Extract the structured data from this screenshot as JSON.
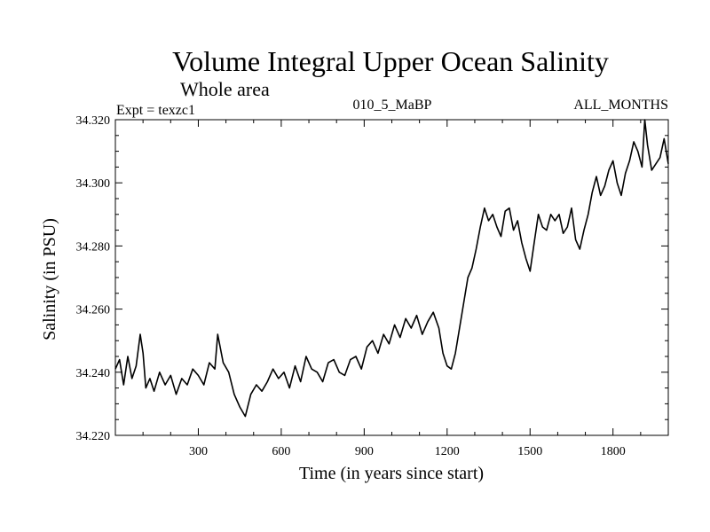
{
  "chart_data": {
    "type": "line",
    "title": "Volume Integral Upper Ocean Salinity",
    "subtitle": "Whole area",
    "experiment_label": "Expt = texzc1",
    "run_label": "010_5_MaBP",
    "months_label": "ALL_MONTHS",
    "xlabel": "Time (in years since start)",
    "ylabel": "Salinity (in PSU)",
    "xlim": [
      0,
      2000
    ],
    "ylim": [
      34.22,
      34.32
    ],
    "x_ticks": [
      300,
      600,
      900,
      1200,
      1500,
      1800
    ],
    "y_ticks": [
      "34.220",
      "34.240",
      "34.260",
      "34.280",
      "34.300",
      "34.320"
    ],
    "series": [
      {
        "name": "salinity",
        "x": [
          0,
          15,
          30,
          45,
          60,
          75,
          90,
          100,
          110,
          125,
          140,
          160,
          180,
          200,
          220,
          240,
          260,
          280,
          300,
          320,
          340,
          360,
          370,
          390,
          410,
          430,
          450,
          470,
          490,
          510,
          530,
          550,
          570,
          590,
          610,
          630,
          650,
          670,
          690,
          710,
          730,
          750,
          770,
          790,
          810,
          830,
          850,
          870,
          890,
          910,
          930,
          950,
          970,
          990,
          1010,
          1030,
          1050,
          1070,
          1090,
          1110,
          1130,
          1150,
          1170,
          1185,
          1200,
          1215,
          1230,
          1245,
          1260,
          1275,
          1290,
          1305,
          1320,
          1335,
          1350,
          1365,
          1380,
          1395,
          1410,
          1425,
          1440,
          1455,
          1470,
          1485,
          1500,
          1515,
          1530,
          1545,
          1560,
          1575,
          1590,
          1605,
          1620,
          1635,
          1650,
          1665,
          1680,
          1695,
          1710,
          1725,
          1740,
          1755,
          1770,
          1785,
          1800,
          1815,
          1830,
          1845,
          1860,
          1875,
          1890,
          1905,
          1915,
          1925,
          1940,
          1955,
          1970,
          1985,
          2000
        ],
        "values": [
          34.241,
          34.244,
          34.236,
          34.245,
          34.238,
          34.242,
          34.252,
          34.246,
          34.235,
          34.238,
          34.234,
          34.24,
          34.236,
          34.239,
          34.233,
          34.238,
          34.236,
          34.241,
          34.239,
          34.236,
          34.243,
          34.241,
          34.252,
          34.243,
          34.24,
          34.233,
          34.229,
          34.226,
          34.233,
          34.236,
          34.234,
          34.237,
          34.241,
          34.238,
          34.24,
          34.235,
          34.242,
          34.237,
          34.245,
          34.241,
          34.24,
          34.237,
          34.243,
          34.244,
          34.24,
          34.239,
          34.244,
          34.245,
          34.241,
          34.248,
          34.25,
          34.246,
          34.252,
          34.249,
          34.255,
          34.251,
          34.257,
          34.254,
          34.258,
          34.252,
          34.256,
          34.259,
          34.254,
          34.246,
          34.242,
          34.241,
          34.246,
          34.254,
          34.262,
          34.27,
          34.273,
          34.279,
          34.286,
          34.292,
          34.288,
          34.29,
          34.286,
          34.283,
          34.291,
          34.292,
          34.285,
          34.288,
          34.281,
          34.276,
          34.272,
          34.281,
          34.29,
          34.286,
          34.285,
          34.29,
          34.288,
          34.29,
          34.284,
          34.286,
          34.292,
          34.282,
          34.279,
          34.285,
          34.29,
          34.297,
          34.302,
          34.296,
          34.299,
          34.304,
          34.307,
          34.3,
          34.296,
          34.303,
          34.307,
          34.313,
          34.31,
          34.305,
          34.32,
          34.312,
          34.304,
          34.306,
          34.308,
          34.314,
          34.306
        ]
      }
    ]
  }
}
